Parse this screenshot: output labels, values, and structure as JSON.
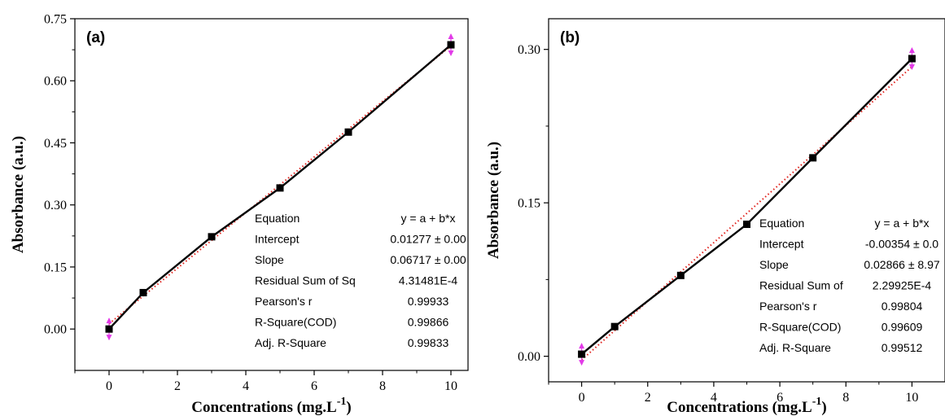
{
  "colors": {
    "data_line": "#000000",
    "fit_line": "#e0201b",
    "error_bar": "#e23be8",
    "axis": "#000000"
  },
  "chart_data": [
    {
      "type": "line",
      "panel_label": "(a)",
      "xlabel": "Concentrations (mg.L",
      "xlabel_sup": "-1",
      "xlabel_close": ")",
      "ylabel": "Absorbance (a.u.)",
      "xlim": [
        -1,
        10.5
      ],
      "ylim": [
        -0.1,
        0.75
      ],
      "xticks": [
        0,
        2,
        4,
        6,
        8,
        10
      ],
      "yticks": [
        0.0,
        0.15,
        0.3,
        0.45,
        0.6,
        0.75
      ],
      "ytick_labels": [
        "0.00",
        "0.15",
        "0.30",
        "0.45",
        "0.60",
        "0.75"
      ],
      "grid": false,
      "series": [
        {
          "x": [
            0,
            1,
            3,
            5,
            7,
            10
          ],
          "y": [
            0.0,
            0.088,
            0.223,
            0.341,
            0.476,
            0.687
          ]
        }
      ],
      "fit": {
        "intercept": 0.01277,
        "slope": 0.06717,
        "style": "dotted"
      },
      "fit_table": {
        "header": [
          "Equation",
          "y = a + b*x"
        ],
        "rows": [
          [
            "Intercept",
            "0.01277 ± 0.00"
          ],
          [
            "Slope",
            "0.06717 ± 0.00"
          ],
          [
            "Residual Sum of Sq",
            "4.31481E-4"
          ],
          [
            "Pearson's r",
            "0.99933"
          ],
          [
            "R-Square(COD)",
            "0.99866"
          ],
          [
            "Adj. R-Square",
            "0.99833"
          ]
        ]
      }
    },
    {
      "type": "line",
      "panel_label": "(b)",
      "xlabel": "Concentrations (mg.L",
      "xlabel_sup": "-1",
      "xlabel_close": ")",
      "ylabel": "Absorbance (a.u.)",
      "xlim": [
        -1,
        11
      ],
      "ylim": [
        -0.025,
        0.33
      ],
      "xticks": [
        0,
        2,
        4,
        6,
        8,
        10
      ],
      "yticks": [
        0.0,
        0.15,
        0.3
      ],
      "ytick_labels": [
        "0.00",
        "0.15",
        "0.30"
      ],
      "grid": false,
      "series": [
        {
          "x": [
            0,
            1,
            3,
            5,
            7,
            10
          ],
          "y": [
            0.002,
            0.029,
            0.079,
            0.129,
            0.194,
            0.291
          ]
        }
      ],
      "fit": {
        "intercept": -0.00354,
        "slope": 0.02866,
        "style": "dotted"
      },
      "fit_table": {
        "header": [
          "Equation",
          "y = a + b*x"
        ],
        "rows": [
          [
            "Intercept",
            "-0.00354 ± 0.0"
          ],
          [
            "Slope",
            "0.02866 ± 8.97"
          ],
          [
            "Residual Sum of",
            "2.29925E-4"
          ],
          [
            "Pearson's r",
            "0.99804"
          ],
          [
            "R-Square(COD)",
            "0.99609"
          ],
          [
            "Adj. R-Square",
            "0.99512"
          ]
        ]
      }
    }
  ]
}
